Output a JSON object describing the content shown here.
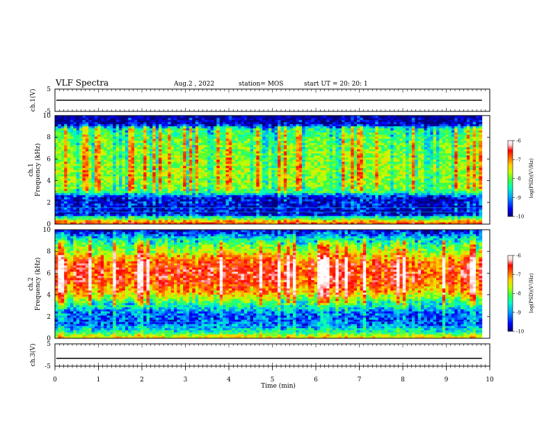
{
  "header": {
    "title": "VLF Spectra",
    "date": "Aug.2  , 2022",
    "station": "station= MOS",
    "start_ut": "start  UT =   20: 20: 1"
  },
  "chart_data": {
    "type": "heatmap",
    "x": {
      "label": "Time  (min)",
      "range": [
        0,
        10
      ],
      "ticks": [
        "0",
        "1",
        "2",
        "3",
        "4",
        "5",
        "6",
        "7",
        "8",
        "9",
        "10"
      ],
      "data_end": 9.82
    },
    "panels": [
      {
        "id": "ch1-waveform",
        "type": "line",
        "ylabel": "ch.1(V)",
        "ylim": [
          -5,
          5
        ],
        "yticks": [
          "5",
          "-5"
        ],
        "level": 0
      },
      {
        "id": "ch1-spectrum",
        "type": "heatmap",
        "ylabel_channel": "ch.1",
        "ylabel": "Frequency  (kHz)",
        "ylim": [
          0,
          10
        ],
        "yticks": [
          "0",
          "2",
          "4",
          "6",
          "8",
          "10"
        ],
        "colorbar": {
          "label": "log(PSD)(V²/Hz)",
          "range": [
            -10,
            -6
          ],
          "ticks": [
            "-6",
            "-7",
            "-8",
            "-9",
            "-10"
          ]
        },
        "profile": [
          {
            "f": 0.0,
            "v": -6.9
          },
          {
            "f": 0.3,
            "v": -7.6
          },
          {
            "f": 0.6,
            "v": -8.5
          },
          {
            "f": 0.9,
            "v": -9.7
          },
          {
            "f": 1.5,
            "v": -9.7
          },
          {
            "f": 2.5,
            "v": -9.7
          },
          {
            "f": 3.0,
            "v": -8.5
          },
          {
            "f": 3.5,
            "v": -8.2
          },
          {
            "f": 5.0,
            "v": -8.1
          },
          {
            "f": 6.5,
            "v": -8.2
          },
          {
            "f": 8.0,
            "v": -8.4
          },
          {
            "f": 8.8,
            "v": -8.6
          },
          {
            "f": 9.2,
            "v": -9.8
          },
          {
            "f": 10.0,
            "v": -10.0
          }
        ]
      },
      {
        "id": "ch2-spectrum",
        "type": "heatmap",
        "ylabel_channel": "ch.2",
        "ylabel": "Frequency  (kHz)",
        "ylim": [
          0,
          10
        ],
        "yticks": [
          "0",
          "2",
          "4",
          "6",
          "8",
          "10"
        ],
        "colorbar": {
          "label": "log(PSD)(V²/Hz)",
          "range": [
            -10,
            -6
          ],
          "ticks": [
            "-6",
            "-7",
            "-8",
            "-9",
            "-10"
          ]
        },
        "profile": [
          {
            "f": 0.0,
            "v": -7.6
          },
          {
            "f": 0.3,
            "v": -8.0
          },
          {
            "f": 0.7,
            "v": -8.8
          },
          {
            "f": 1.5,
            "v": -9.4
          },
          {
            "f": 2.5,
            "v": -9.2
          },
          {
            "f": 3.3,
            "v": -8.4
          },
          {
            "f": 4.2,
            "v": -7.4
          },
          {
            "f": 5.0,
            "v": -6.9
          },
          {
            "f": 6.0,
            "v": -6.7
          },
          {
            "f": 7.0,
            "v": -6.9
          },
          {
            "f": 8.0,
            "v": -7.8
          },
          {
            "f": 9.0,
            "v": -8.6
          },
          {
            "f": 9.5,
            "v": -9.2
          },
          {
            "f": 10.0,
            "v": -9.8
          }
        ]
      },
      {
        "id": "ch3-waveform",
        "type": "line",
        "ylabel": "ch.3(V)",
        "ylim": [
          -5,
          5
        ],
        "yticks": [
          "5",
          "-5"
        ],
        "level": -1.5
      }
    ],
    "colors": {
      "scale": [
        "#00007a",
        "#0000ff",
        "#00a0ff",
        "#00ffc0",
        "#40ff40",
        "#c0ff00",
        "#ffd000",
        "#ff6000",
        "#ff0000",
        "#ffd0d0",
        "#ffffff"
      ]
    }
  }
}
